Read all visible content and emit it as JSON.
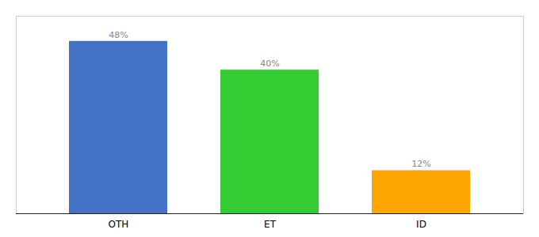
{
  "chart_data": {
    "type": "bar",
    "categories": [
      "OTH",
      "ET",
      "ID"
    ],
    "values": [
      48,
      40,
      12
    ],
    "colors": [
      "#4472C4",
      "#33CC33",
      "#FFA500"
    ],
    "ylim": [
      0,
      55
    ],
    "data_labels": true,
    "value_labels": [
      "48%",
      "40%",
      "12%"
    ],
    "tick_labels": "x",
    "grid": false
  }
}
